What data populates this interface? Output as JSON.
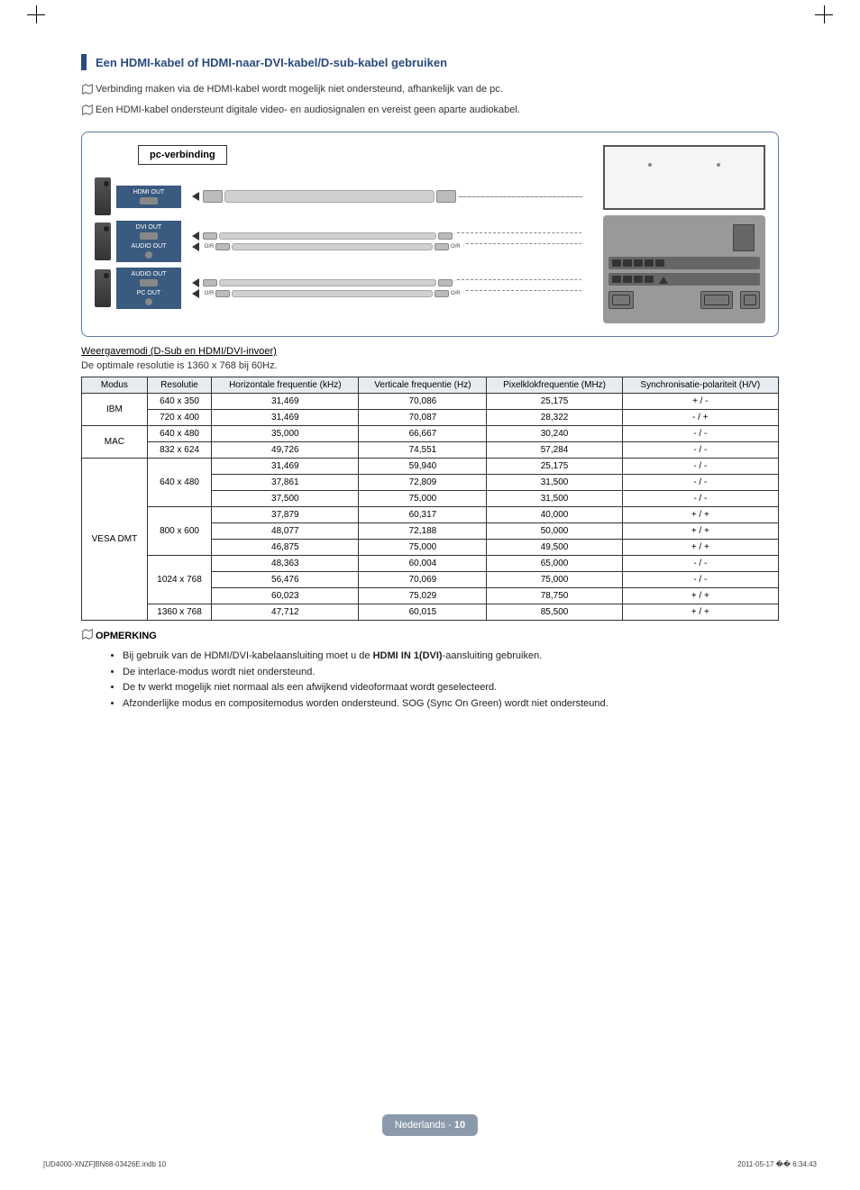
{
  "header": {
    "title": "Een HDMI-kabel of HDMI-naar-DVI-kabel/D-sub-kabel gebruiken"
  },
  "notes": [
    "Verbinding maken via de HDMI-kabel wordt mogelijk niet ondersteund, afhankelijk van de pc.",
    "Een HDMI-kabel ondersteunt digitale video- en audiosignalen en vereist geen aparte audiokabel."
  ],
  "diagram": {
    "pc_connection_label": "pc-verbinding",
    "ports": [
      {
        "label1": "HDMI OUT",
        "icon": "hdmi"
      },
      {
        "label1": "DVI OUT",
        "label2": "AUDIO OUT",
        "icon": "dvi"
      },
      {
        "label1": "AUDIO OUT",
        "label2": "PC OUT",
        "icon": "vga"
      }
    ]
  },
  "modes_heading": "Weergavemodi (D-Sub en HDMI/DVI-invoer)",
  "modes_desc": "De optimale resolutie is 1360 x 768 bij 60Hz.",
  "table": {
    "columns": [
      "Modus",
      "Resolutie",
      "Horizontale frequentie (kHz)",
      "Verticale frequentie (Hz)",
      "Pixelklokfrequentie (MHz)",
      "Synchronisatie-polariteit (H/V)"
    ],
    "groups": [
      {
        "modus": "IBM",
        "rows": [
          {
            "res": "640 x 350",
            "h": "31,469",
            "v": "70,086",
            "p": "25,175",
            "s": "+ / -"
          },
          {
            "res": "720 x 400",
            "h": "31,469",
            "v": "70,087",
            "p": "28,322",
            "s": "- / +"
          }
        ]
      },
      {
        "modus": "MAC",
        "rows": [
          {
            "res": "640 x 480",
            "h": "35,000",
            "v": "66,667",
            "p": "30,240",
            "s": "- / -"
          },
          {
            "res": "832 x 624",
            "h": "49,726",
            "v": "74,551",
            "p": "57,284",
            "s": "- / -"
          }
        ]
      },
      {
        "modus": "VESA DMT",
        "subgroups": [
          {
            "res": "640 x 480",
            "rows": [
              {
                "h": "31,469",
                "v": "59,940",
                "p": "25,175",
                "s": "- / -"
              },
              {
                "h": "37,861",
                "v": "72,809",
                "p": "31,500",
                "s": "- / -"
              },
              {
                "h": "37,500",
                "v": "75,000",
                "p": "31,500",
                "s": "- / -"
              }
            ]
          },
          {
            "res": "800 x 600",
            "rows": [
              {
                "h": "37,879",
                "v": "60,317",
                "p": "40,000",
                "s": "+ / +"
              },
              {
                "h": "48,077",
                "v": "72,188",
                "p": "50,000",
                "s": "+ / +"
              },
              {
                "h": "46,875",
                "v": "75,000",
                "p": "49,500",
                "s": "+ / +"
              }
            ]
          },
          {
            "res": "1024 x 768",
            "rows": [
              {
                "h": "48,363",
                "v": "60,004",
                "p": "65,000",
                "s": "- / -"
              },
              {
                "h": "56,476",
                "v": "70,069",
                "p": "75,000",
                "s": "- / -"
              },
              {
                "h": "60,023",
                "v": "75,029",
                "p": "78,750",
                "s": "+ / +"
              }
            ]
          },
          {
            "res": "1360 x 768",
            "rows": [
              {
                "h": "47,712",
                "v": "60,015",
                "p": "85,500",
                "s": "+ / +"
              }
            ]
          }
        ]
      }
    ]
  },
  "opmerking": {
    "title": "OPMERKING",
    "items": [
      {
        "pre": "Bij gebruik van de HDMI/DVI-kabelaansluiting moet u de ",
        "bold": "HDMI IN 1(DVI)",
        "post": "-aansluiting gebruiken."
      },
      {
        "pre": "De interlace-modus wordt niet ondersteund."
      },
      {
        "pre": "De tv werkt mogelijk niet normaal als een afwijkend videoformaat wordt geselecteerd."
      },
      {
        "pre": "Afzonderlijke modus en compositemodus worden ondersteund. SOG (Sync On Green) wordt niet ondersteund."
      }
    ]
  },
  "footer": {
    "lang": "Nederlands - ",
    "page": "10",
    "left": "[UD4000-XNZF]BN68-03426E.indb   10",
    "right": "2011-05-17   �� 6:34:43"
  }
}
